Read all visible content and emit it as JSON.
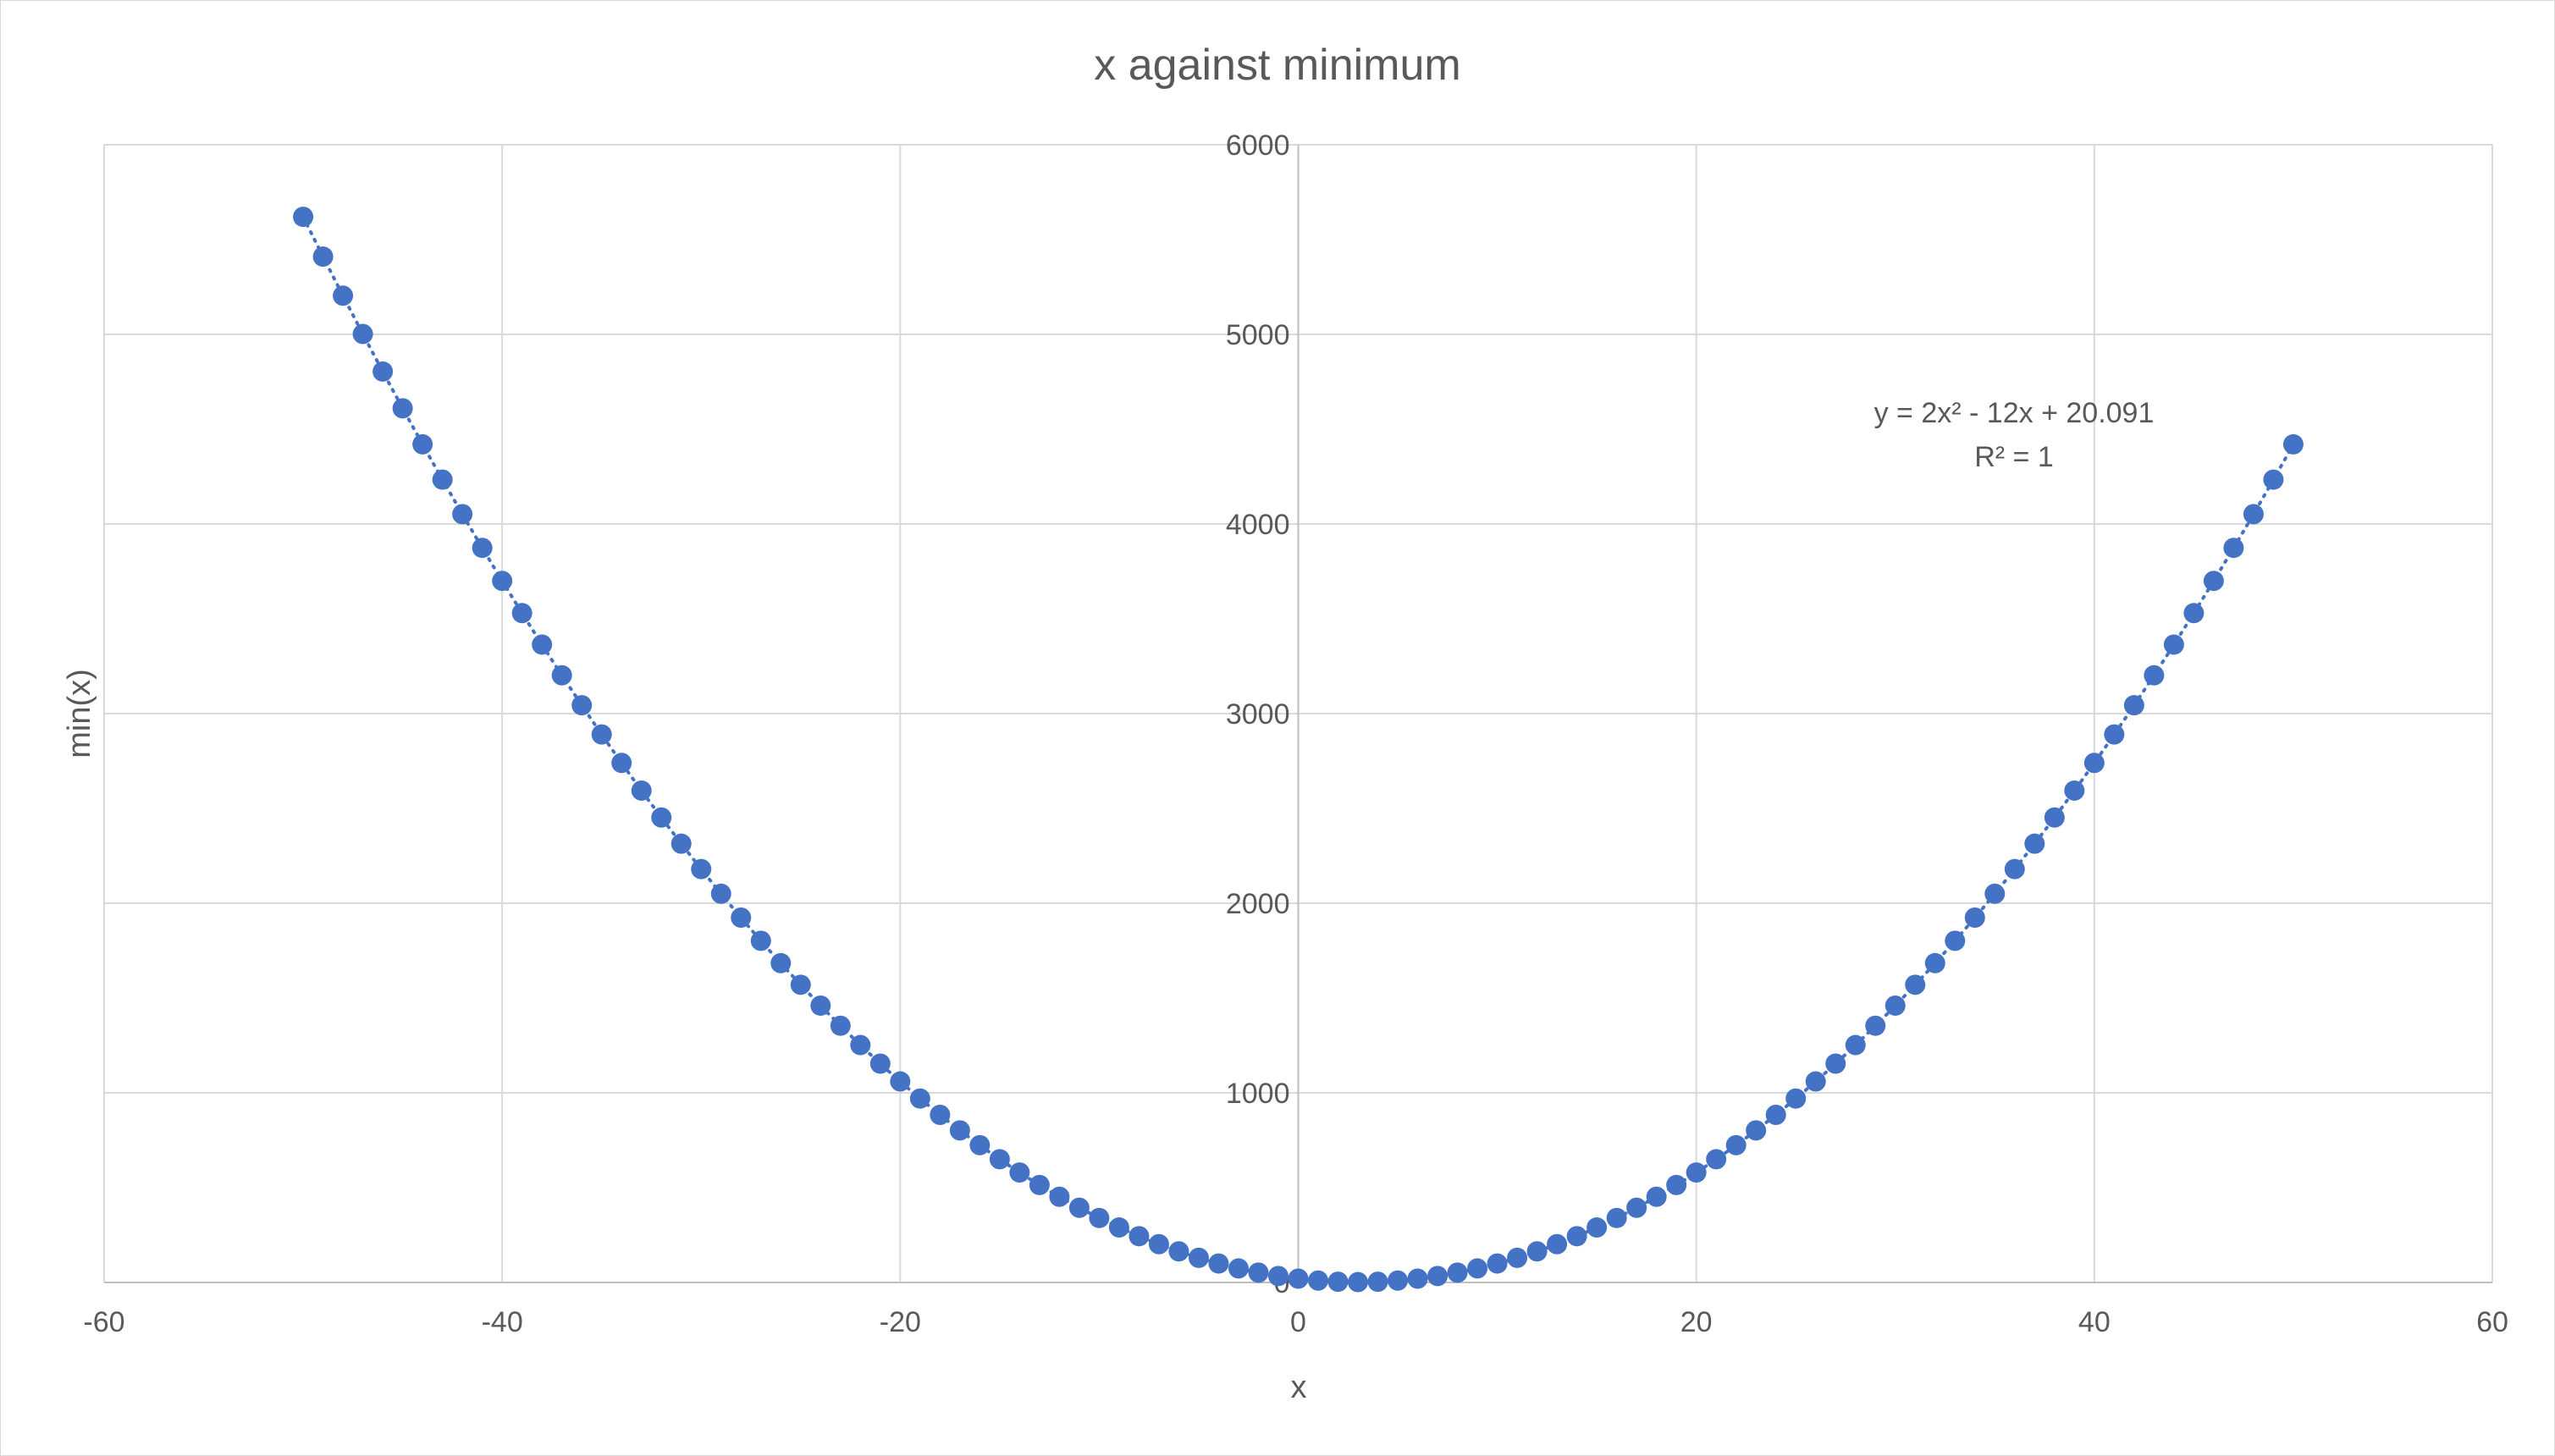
{
  "chart_data": {
    "type": "scatter",
    "title": "x against minimum",
    "xlabel": "x",
    "ylabel": "min(x)",
    "xlim": [
      -60,
      60
    ],
    "ylim": [
      0,
      6000
    ],
    "x_ticks": [
      -60,
      -40,
      -20,
      0,
      20,
      40,
      60
    ],
    "y_ticks": [
      0,
      1000,
      2000,
      3000,
      4000,
      5000,
      6000
    ],
    "grid": true,
    "marker_color": "#4472C4",
    "series": [
      {
        "x": [
          -50,
          -49,
          -48,
          -47,
          -46,
          -45,
          -44,
          -43,
          -42,
          -41,
          -40,
          -39,
          -38,
          -37,
          -36,
          -35,
          -34,
          -33,
          -32,
          -31,
          -30,
          -29,
          -28,
          -27,
          -26,
          -25,
          -24,
          -23,
          -22,
          -21,
          -20,
          -19,
          -18,
          -17,
          -16,
          -15,
          -14,
          -13,
          -12,
          -11,
          -10,
          -9,
          -8,
          -7,
          -6,
          -5,
          -4,
          -3,
          -2,
          -1,
          0,
          1,
          2,
          3,
          4,
          5,
          6,
          7,
          8,
          9,
          10,
          11,
          12,
          13,
          14,
          15,
          16,
          17,
          18,
          19,
          20,
          21,
          22,
          23,
          24,
          25,
          26,
          27,
          28,
          29,
          30,
          31,
          32,
          33,
          34,
          35,
          36,
          37,
          38,
          39,
          40,
          41,
          42,
          43,
          44,
          45,
          46,
          47,
          48,
          49,
          50
        ],
        "values": [
          5620,
          5410,
          5204,
          5002,
          4804,
          4610,
          4420,
          4234,
          4052,
          3874,
          3700,
          3530,
          3364,
          3202,
          3044,
          2890,
          2740,
          2594,
          2452,
          2314,
          2180,
          2050,
          1924,
          1802,
          1684,
          1570,
          1460,
          1354,
          1252,
          1154,
          1060,
          970,
          884,
          802,
          724,
          650,
          580,
          514,
          452,
          394,
          340,
          290,
          244,
          202,
          164,
          130,
          100,
          74,
          52,
          34,
          20,
          10,
          4,
          2,
          4,
          10,
          20,
          34,
          52,
          74,
          100,
          130,
          164,
          202,
          244,
          290,
          340,
          394,
          452,
          514,
          580,
          650,
          724,
          802,
          884,
          970,
          1060,
          1154,
          1252,
          1354,
          1460,
          1570,
          1684,
          1802,
          1924,
          2050,
          2180,
          2314,
          2452,
          2594,
          2740,
          2890,
          3044,
          3202,
          3364,
          3530,
          3700,
          3874,
          4052,
          4234,
          4420
        ]
      }
    ],
    "trendline": {
      "type": "polynomial",
      "order": 2,
      "coefficients": [
        2,
        -12,
        20.091
      ],
      "equation_label": "y = 2x² - 12x + 20.091",
      "r2_label": "R² = 1",
      "style": "dotted"
    }
  }
}
